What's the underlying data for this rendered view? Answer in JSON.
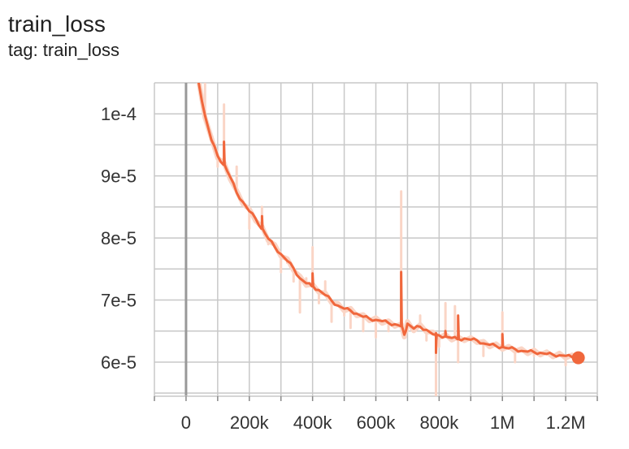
{
  "header": {
    "title": "train_loss",
    "tag_text": "tag: train_loss"
  },
  "colors": {
    "smoothed_line": "#f0673c",
    "raw_line": "#fad5c6",
    "grid": "#c8c8c8",
    "zero_axis": "#999999"
  },
  "chart_data": {
    "type": "line",
    "title": "train_loss",
    "subtitle": "tag: train_loss",
    "xlabel": "",
    "ylabel": "",
    "xlim": [
      -100000,
      1300000
    ],
    "ylim": [
      5.45e-05,
      0.000105
    ],
    "x_ticks": [
      {
        "value": 0,
        "label": "0"
      },
      {
        "value": 200000,
        "label": "200k"
      },
      {
        "value": 400000,
        "label": "400k"
      },
      {
        "value": 600000,
        "label": "600k"
      },
      {
        "value": 800000,
        "label": "800k"
      },
      {
        "value": 1000000,
        "label": "1M"
      },
      {
        "value": 1200000,
        "label": "1.2M"
      }
    ],
    "y_ticks": [
      {
        "value": 6e-05,
        "label": "6e-5"
      },
      {
        "value": 7e-05,
        "label": "7e-5"
      },
      {
        "value": 8e-05,
        "label": "8e-5"
      },
      {
        "value": 9e-05,
        "label": "9e-5"
      },
      {
        "value": 0.0001,
        "label": "1e-4"
      }
    ],
    "grid": true,
    "legend": "none",
    "series": [
      {
        "role": "smoothed",
        "x": [
          40000,
          60000,
          80000,
          100000,
          120000,
          140000,
          160000,
          180000,
          200000,
          220000,
          240000,
          260000,
          280000,
          300000,
          320000,
          340000,
          360000,
          380000,
          400000,
          420000,
          440000,
          460000,
          480000,
          500000,
          520000,
          540000,
          560000,
          580000,
          600000,
          620000,
          640000,
          660000,
          680000,
          690000,
          700000,
          720000,
          740000,
          760000,
          780000,
          800000,
          820000,
          840000,
          860000,
          880000,
          900000,
          920000,
          940000,
          960000,
          980000,
          1000000,
          1020000,
          1040000,
          1060000,
          1080000,
          1100000,
          1120000,
          1140000,
          1160000,
          1180000,
          1200000,
          1220000,
          1240000
        ],
        "y": [
          0.000105,
          9.97e-05,
          9.58e-05,
          9.32e-05,
          9.18e-05,
          8.98e-05,
          8.73e-05,
          8.58e-05,
          8.43e-05,
          8.31e-05,
          8.15e-05,
          7.99e-05,
          7.86e-05,
          7.74e-05,
          7.63e-05,
          7.51e-05,
          7.35e-05,
          7.27e-05,
          7.22e-05,
          7.16e-05,
          7.08e-05,
          6.99e-05,
          6.91e-05,
          6.86e-05,
          6.83e-05,
          6.78e-05,
          6.73e-05,
          6.7e-05,
          6.68e-05,
          6.66e-05,
          6.63e-05,
          6.61e-05,
          6.58e-05,
          6.44e-05,
          6.62e-05,
          6.54e-05,
          6.57e-05,
          6.52e-05,
          6.45e-05,
          6.43e-05,
          6.41e-05,
          6.39e-05,
          6.37e-05,
          6.38e-05,
          6.36e-05,
          6.35e-05,
          6.3e-05,
          6.28e-05,
          6.26e-05,
          6.24e-05,
          6.22e-05,
          6.21e-05,
          6.18e-05,
          6.17e-05,
          6.16e-05,
          6.15e-05,
          6.13e-05,
          6.12e-05,
          6.11e-05,
          6.1e-05,
          6.08e-05,
          6.07e-05
        ],
        "spikes": [
          {
            "x": 120000,
            "y": 9.55e-05
          },
          {
            "x": 240000,
            "y": 8.35e-05
          },
          {
            "x": 400000,
            "y": 7.43e-05
          },
          {
            "x": 680000,
            "y": 7.45e-05
          },
          {
            "x": 790000,
            "y": 6.15e-05
          },
          {
            "x": 820000,
            "y": 6.5e-05
          },
          {
            "x": 860000,
            "y": 6.75e-05
          },
          {
            "x": 1000000,
            "y": 6.45e-05
          }
        ]
      },
      {
        "role": "raw",
        "x": [
          60000,
          80000,
          100000,
          120000,
          140000,
          160000,
          200000,
          240000,
          260000,
          300000,
          320000,
          340000,
          360000,
          380000,
          400000,
          420000,
          440000,
          460000,
          500000,
          520000,
          560000,
          600000,
          640000,
          680000,
          700000,
          740000,
          760000,
          790000,
          800000,
          820000,
          850000,
          860000,
          900000,
          940000,
          1000000,
          1040000,
          1100000,
          1200000
        ],
        "y": [
          0.000105,
          9.6e-05,
          9.15e-05,
          0.0001015,
          8.9e-05,
          9.15e-05,
          8.15e-05,
          8.5e-05,
          7.9e-05,
          7.45e-05,
          7.6e-05,
          7.3e-05,
          6.8e-05,
          7.35e-05,
          7.85e-05,
          6.95e-05,
          7.3e-05,
          6.65e-05,
          6.75e-05,
          6.55e-05,
          6.5e-05,
          6.4e-05,
          6.5e-05,
          8.75e-05,
          6.5e-05,
          6.75e-05,
          6.35e-05,
          5.45e-05,
          6.25e-05,
          6.95e-05,
          6.9e-05,
          6e-05,
          6.4e-05,
          6.1e-05,
          6.8e-05,
          6e-05,
          6.1e-05,
          5.95e-05
        ]
      }
    ],
    "last_point": {
      "x": 1240000,
      "y": 6.07e-05
    }
  }
}
